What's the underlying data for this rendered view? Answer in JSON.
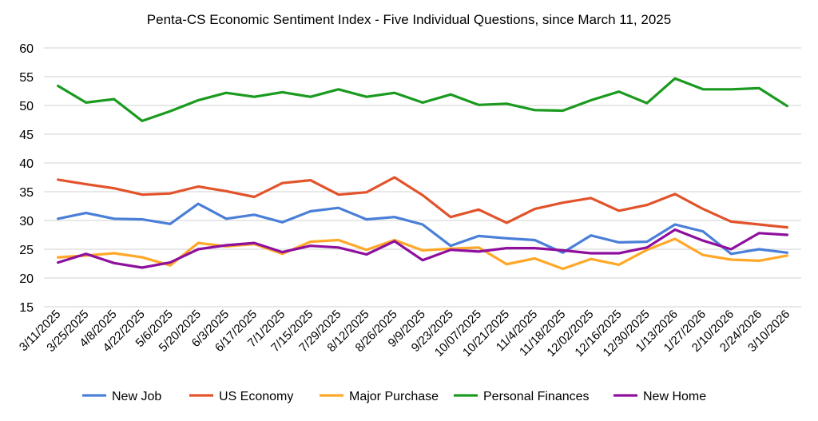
{
  "chart_data": {
    "type": "line",
    "title": "Penta-CS Economic Sentiment Index - Five Individual Questions, since March 11, 2025",
    "xlabel": "",
    "ylabel": "",
    "ylim": [
      15,
      60
    ],
    "yticks": [
      15,
      20,
      25,
      30,
      35,
      40,
      45,
      50,
      55,
      60
    ],
    "grid": true,
    "legend_position": "bottom",
    "categories": [
      "3/11/2025",
      "3/25/2025",
      "4/8/2025",
      "4/22/2025",
      "5/6/2025",
      "5/20/2025",
      "6/3/2025",
      "6/17/2025",
      "7/1/2025",
      "7/15/2025",
      "7/29/2025",
      "8/12/2025",
      "8/26/2025",
      "9/9/2025",
      "9/23/2025",
      "10/07/2025",
      "10/21/2025",
      "11/4/2025",
      "11/18/2025",
      "12/02/2025",
      "12/16/2025",
      "12/30/2025",
      "1/13/2026",
      "1/27/2026",
      "2/10/2026",
      "2/24/2026",
      "3/10/2026"
    ],
    "series": [
      {
        "name": "New Job",
        "color": "#4a7fd8",
        "values": [
          30.3,
          31.3,
          30.3,
          30.2,
          29.4,
          32.9,
          30.3,
          31.0,
          29.7,
          31.6,
          32.2,
          30.2,
          30.6,
          29.3,
          25.6,
          27.3,
          26.9,
          26.6,
          24.4,
          27.4,
          26.2,
          26.3,
          29.3,
          28.1,
          24.2,
          25.0,
          24.4
        ]
      },
      {
        "name": "US Economy",
        "color": "#e2532b",
        "values": [
          37.1,
          36.3,
          35.6,
          34.5,
          34.7,
          35.9,
          35.1,
          34.1,
          36.5,
          37.0,
          34.5,
          34.9,
          37.5,
          34.4,
          30.6,
          31.9,
          29.6,
          32.0,
          33.1,
          33.9,
          31.7,
          32.7,
          34.6,
          32.0,
          29.8,
          29.3,
          28.8
        ]
      },
      {
        "name": "Major Purchase",
        "color": "#ffa726",
        "values": [
          23.6,
          23.9,
          24.3,
          23.6,
          22.2,
          26.1,
          25.5,
          25.9,
          24.2,
          26.3,
          26.6,
          24.9,
          26.6,
          24.8,
          25.1,
          25.3,
          22.4,
          23.4,
          21.6,
          23.3,
          22.3,
          24.9,
          26.8,
          24.0,
          23.2,
          23.0,
          23.9
        ]
      },
      {
        "name": "Personal Finances",
        "color": "#1a9a1f",
        "values": [
          53.4,
          50.5,
          51.1,
          47.3,
          49.0,
          50.9,
          52.2,
          51.5,
          52.3,
          51.5,
          52.8,
          51.5,
          52.2,
          50.5,
          51.9,
          50.1,
          50.3,
          49.2,
          49.1,
          50.9,
          52.4,
          50.4,
          54.7,
          52.8,
          52.8,
          53.0,
          49.9
        ]
      },
      {
        "name": "New Home",
        "color": "#8e0f9e",
        "values": [
          22.7,
          24.2,
          22.6,
          21.8,
          22.7,
          25.0,
          25.7,
          26.1,
          24.5,
          25.6,
          25.3,
          24.1,
          26.4,
          23.1,
          24.9,
          24.6,
          25.2,
          25.2,
          24.8,
          24.3,
          24.3,
          25.3,
          28.4,
          26.5,
          25.0,
          27.8,
          27.5
        ]
      }
    ]
  }
}
